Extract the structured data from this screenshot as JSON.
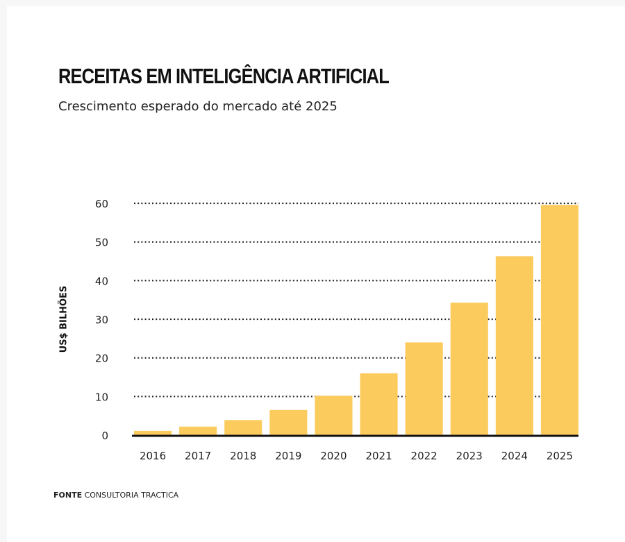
{
  "chart_data": {
    "type": "bar",
    "title": "RECEITAS EM INTELIGÊNCIA ARTIFICIAL",
    "subtitle": "Crescimento esperado do mercado até 2025",
    "xlabel": "",
    "ylabel": "US$ BILHÕES",
    "categories": [
      "2016",
      "2017",
      "2018",
      "2019",
      "2020",
      "2021",
      "2022",
      "2023",
      "2024",
      "2025"
    ],
    "values": [
      1.1,
      2.2,
      3.9,
      6.5,
      10.2,
      16,
      24,
      34.3,
      46.3,
      59.6
    ],
    "ylim": [
      0,
      60
    ],
    "yticks": [
      0,
      10,
      20,
      30,
      40,
      50,
      60
    ],
    "grid": "horizontal dotted",
    "bar_color": "#fccb5d",
    "source_label": "FONTE",
    "source": "CONSULTORIA TRACTICA"
  }
}
